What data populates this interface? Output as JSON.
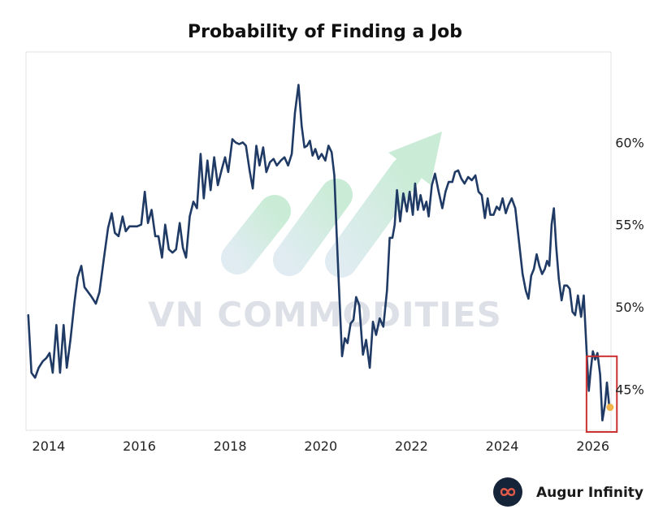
{
  "chart_data": {
    "type": "line",
    "title": "Probability of Finding a Job",
    "xlabel": "",
    "ylabel": "",
    "xlim": [
      2013.5,
      2026.4
    ],
    "ylim": [
      42.5,
      65.5
    ],
    "x_ticks": [
      2014,
      2016,
      2018,
      2020,
      2022,
      2024,
      2026
    ],
    "x_tick_labels": [
      "2014",
      "2016",
      "2018",
      "2020",
      "2022",
      "2024",
      "2026"
    ],
    "y_ticks": [
      45,
      50,
      55,
      60
    ],
    "y_tick_labels": [
      "45%",
      "50%",
      "55%",
      "60%"
    ],
    "y_axis_side": "right",
    "grid": false,
    "series": [
      {
        "name": "Probability of Finding a Job",
        "color": "#1f3a64",
        "points": [
          [
            2013.55,
            49.5
          ],
          [
            2013.62,
            46.0
          ],
          [
            2013.7,
            45.7
          ],
          [
            2013.78,
            46.3
          ],
          [
            2013.87,
            46.7
          ],
          [
            2013.95,
            46.9
          ],
          [
            2014.02,
            47.2
          ],
          [
            2014.09,
            46.0
          ],
          [
            2014.17,
            48.9
          ],
          [
            2014.25,
            46.0
          ],
          [
            2014.33,
            48.9
          ],
          [
            2014.4,
            46.3
          ],
          [
            2014.48,
            48.0
          ],
          [
            2014.57,
            50.3
          ],
          [
            2014.64,
            51.8
          ],
          [
            2014.72,
            52.5
          ],
          [
            2014.79,
            51.2
          ],
          [
            2014.87,
            50.9
          ],
          [
            2014.95,
            50.6
          ],
          [
            2015.04,
            50.2
          ],
          [
            2015.12,
            50.9
          ],
          [
            2015.22,
            53.0
          ],
          [
            2015.31,
            54.8
          ],
          [
            2015.39,
            55.7
          ],
          [
            2015.46,
            54.5
          ],
          [
            2015.54,
            54.3
          ],
          [
            2015.63,
            55.5
          ],
          [
            2015.7,
            54.6
          ],
          [
            2015.78,
            54.9
          ],
          [
            2015.87,
            54.9
          ],
          [
            2015.95,
            54.9
          ],
          [
            2016.04,
            55.0
          ],
          [
            2016.12,
            57.0
          ],
          [
            2016.19,
            55.1
          ],
          [
            2016.27,
            55.9
          ],
          [
            2016.35,
            54.3
          ],
          [
            2016.42,
            54.3
          ],
          [
            2016.5,
            53.0
          ],
          [
            2016.57,
            55.0
          ],
          [
            2016.65,
            53.5
          ],
          [
            2016.73,
            53.3
          ],
          [
            2016.81,
            53.5
          ],
          [
            2016.89,
            55.1
          ],
          [
            2016.96,
            53.6
          ],
          [
            2017.03,
            53.0
          ],
          [
            2017.11,
            55.5
          ],
          [
            2017.19,
            56.4
          ],
          [
            2017.27,
            56.0
          ],
          [
            2017.35,
            59.3
          ],
          [
            2017.42,
            56.6
          ],
          [
            2017.5,
            58.9
          ],
          [
            2017.57,
            57.1
          ],
          [
            2017.65,
            59.1
          ],
          [
            2017.73,
            57.4
          ],
          [
            2017.81,
            58.3
          ],
          [
            2017.89,
            59.1
          ],
          [
            2017.96,
            58.2
          ],
          [
            2018.05,
            60.2
          ],
          [
            2018.12,
            60.0
          ],
          [
            2018.2,
            59.9
          ],
          [
            2018.28,
            60.0
          ],
          [
            2018.35,
            59.8
          ],
          [
            2018.43,
            58.3
          ],
          [
            2018.5,
            57.2
          ],
          [
            2018.58,
            59.8
          ],
          [
            2018.65,
            58.6
          ],
          [
            2018.73,
            59.7
          ],
          [
            2018.8,
            58.2
          ],
          [
            2018.88,
            58.8
          ],
          [
            2018.96,
            59.0
          ],
          [
            2019.03,
            58.6
          ],
          [
            2019.12,
            58.9
          ],
          [
            2019.2,
            59.1
          ],
          [
            2019.28,
            58.6
          ],
          [
            2019.36,
            59.3
          ],
          [
            2019.43,
            61.8
          ],
          [
            2019.51,
            63.5
          ],
          [
            2019.58,
            61.0
          ],
          [
            2019.64,
            59.7
          ],
          [
            2019.7,
            59.8
          ],
          [
            2019.76,
            60.1
          ],
          [
            2019.82,
            59.2
          ],
          [
            2019.88,
            59.6
          ],
          [
            2019.95,
            59.0
          ],
          [
            2020.02,
            59.3
          ],
          [
            2020.1,
            58.9
          ],
          [
            2020.17,
            59.8
          ],
          [
            2020.24,
            59.4
          ],
          [
            2020.3,
            58.0
          ],
          [
            2020.35,
            54.5
          ],
          [
            2020.4,
            51.3
          ],
          [
            2020.47,
            47.0
          ],
          [
            2020.53,
            48.1
          ],
          [
            2020.59,
            47.8
          ],
          [
            2020.66,
            49.0
          ],
          [
            2020.72,
            49.2
          ],
          [
            2020.78,
            50.6
          ],
          [
            2020.85,
            50.1
          ],
          [
            2020.93,
            47.1
          ],
          [
            2021.0,
            48.0
          ],
          [
            2021.08,
            46.3
          ],
          [
            2021.15,
            49.1
          ],
          [
            2021.22,
            48.3
          ],
          [
            2021.3,
            49.3
          ],
          [
            2021.38,
            48.8
          ],
          [
            2021.46,
            51.0
          ],
          [
            2021.52,
            54.2
          ],
          [
            2021.58,
            54.2
          ],
          [
            2021.63,
            55.0
          ],
          [
            2021.68,
            57.1
          ],
          [
            2021.75,
            55.2
          ],
          [
            2021.82,
            56.9
          ],
          [
            2021.9,
            55.8
          ],
          [
            2021.96,
            57.0
          ],
          [
            2022.03,
            55.6
          ],
          [
            2022.08,
            57.5
          ],
          [
            2022.14,
            55.9
          ],
          [
            2022.2,
            56.8
          ],
          [
            2022.27,
            55.9
          ],
          [
            2022.33,
            56.4
          ],
          [
            2022.38,
            55.5
          ],
          [
            2022.45,
            57.4
          ],
          [
            2022.52,
            58.1
          ],
          [
            2022.6,
            57.0
          ],
          [
            2022.68,
            56.0
          ],
          [
            2022.75,
            57.0
          ],
          [
            2022.82,
            57.6
          ],
          [
            2022.9,
            57.6
          ],
          [
            2022.96,
            58.2
          ],
          [
            2023.03,
            58.3
          ],
          [
            2023.1,
            57.8
          ],
          [
            2023.17,
            57.5
          ],
          [
            2023.25,
            57.9
          ],
          [
            2023.33,
            57.7
          ],
          [
            2023.41,
            58.0
          ],
          [
            2023.48,
            57.0
          ],
          [
            2023.55,
            56.8
          ],
          [
            2023.62,
            55.4
          ],
          [
            2023.68,
            56.6
          ],
          [
            2023.74,
            55.6
          ],
          [
            2023.81,
            55.6
          ],
          [
            2023.88,
            56.1
          ],
          [
            2023.94,
            55.9
          ],
          [
            2024.01,
            56.6
          ],
          [
            2024.08,
            55.7
          ],
          [
            2024.14,
            56.2
          ],
          [
            2024.21,
            56.6
          ],
          [
            2024.29,
            56.0
          ],
          [
            2024.37,
            54.0
          ],
          [
            2024.45,
            52.0
          ],
          [
            2024.52,
            51.0
          ],
          [
            2024.58,
            50.5
          ],
          [
            2024.64,
            51.9
          ],
          [
            2024.7,
            52.3
          ],
          [
            2024.76,
            53.2
          ],
          [
            2024.82,
            52.5
          ],
          [
            2024.88,
            52.0
          ],
          [
            2024.94,
            52.3
          ],
          [
            2024.99,
            52.8
          ],
          [
            2025.04,
            52.5
          ],
          [
            2025.09,
            55.0
          ],
          [
            2025.14,
            56.0
          ],
          [
            2025.19,
            53.7
          ],
          [
            2025.25,
            51.7
          ],
          [
            2025.31,
            50.4
          ],
          [
            2025.37,
            51.3
          ],
          [
            2025.43,
            51.3
          ],
          [
            2025.49,
            51.1
          ],
          [
            2025.55,
            49.7
          ],
          [
            2025.61,
            49.5
          ],
          [
            2025.67,
            50.7
          ],
          [
            2025.74,
            49.4
          ],
          [
            2025.8,
            50.7
          ],
          [
            2025.87,
            46.9
          ],
          [
            2025.91,
            44.9
          ],
          [
            2025.95,
            46.1
          ],
          [
            2026.0,
            47.3
          ],
          [
            2026.05,
            46.8
          ],
          [
            2026.1,
            47.2
          ],
          [
            2026.16,
            45.9
          ],
          [
            2026.21,
            43.1
          ],
          [
            2026.27,
            44.1
          ],
          [
            2026.31,
            45.4
          ],
          [
            2026.36,
            44.0
          ]
        ]
      }
    ],
    "marker": {
      "x": 2026.38,
      "y": 43.9,
      "color": "#f0b44a"
    },
    "highlight_box": {
      "x_range": [
        2025.86,
        2026.53
      ],
      "y_range": [
        42.4,
        47.0
      ],
      "color": "#cc2f2f"
    },
    "watermark": {
      "text": "VN COMMODITIES",
      "color": "#d2d6df"
    }
  },
  "branding": {
    "logo_icon": "infinity-icon",
    "label": "Augur Infinity"
  }
}
